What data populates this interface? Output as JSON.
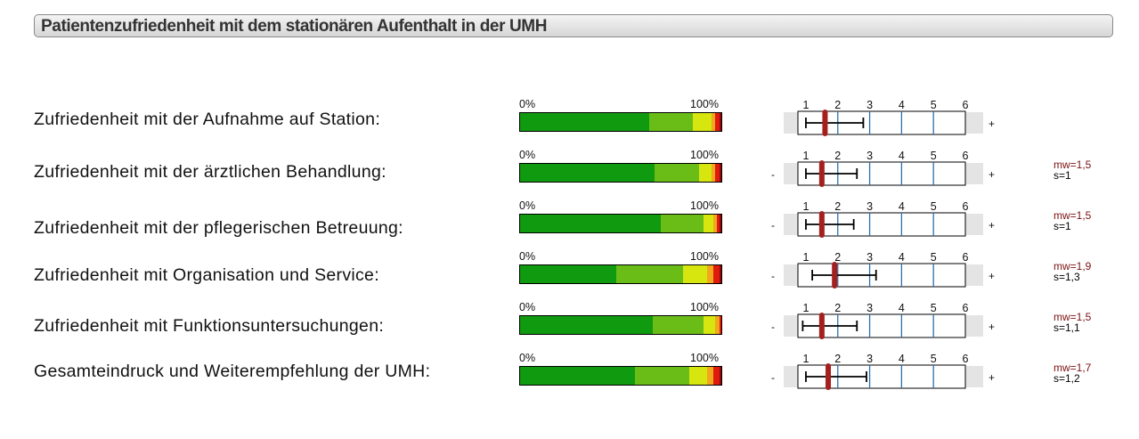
{
  "title": "Patientenzufriedenheit mit dem stationären Aufenthalt in der UMH",
  "labels": {
    "pct_min": "0%",
    "pct_max": "100%",
    "minus": "-",
    "plus": "+"
  },
  "colors": {
    "dist": [
      "#0f9a0f",
      "#6abd17",
      "#d6e60e",
      "#f2a71c",
      "#e11a0e",
      "#8c0a0a"
    ],
    "mean_marker": "#a4201e",
    "grid": "#2f6fae"
  },
  "chart_data": {
    "type": "bar",
    "distribution_scale": [
      1,
      2,
      3,
      4,
      5,
      6
    ],
    "scale_ticks": [
      1,
      2,
      3,
      4,
      5,
      6
    ],
    "rows": [
      {
        "label": "Zufriedenheit mit der Aufnahme auf Station:",
        "distribution": [
          64,
          22,
          9,
          2,
          2,
          1
        ],
        "mean": 1.6,
        "sd_low": 1.0,
        "sd_high": 2.8,
        "minus": false,
        "mw": "",
        "s": ""
      },
      {
        "label": "Zufriedenheit mit der ärztlichen Behandlung:",
        "distribution": [
          67,
          22,
          6,
          2,
          2,
          1
        ],
        "mean": 1.5,
        "sd_low": 1.0,
        "sd_high": 2.6,
        "minus": true,
        "mw": "mw=1,5",
        "s": "s=1"
      },
      {
        "label": "Zufriedenheit mit der pflegerischen Betreuung:",
        "distribution": [
          70,
          21,
          5,
          2,
          1,
          1
        ],
        "mean": 1.5,
        "sd_low": 1.0,
        "sd_high": 2.5,
        "minus": true,
        "mw": "mw=1,5",
        "s": "s=1"
      },
      {
        "label": "Zufriedenheit mit Organisation und Service:",
        "distribution": [
          48,
          33,
          12,
          3,
          3,
          1
        ],
        "mean": 1.9,
        "sd_low": 1.2,
        "sd_high": 3.2,
        "minus": true,
        "mw": "mw=1,9",
        "s": "s=1,3"
      },
      {
        "label": "Zufriedenheit mit Funktionsuntersuchungen:",
        "distribution": [
          66,
          25,
          6,
          2,
          1,
          0
        ],
        "mean": 1.5,
        "sd_low": 0.9,
        "sd_high": 2.6,
        "minus": true,
        "mw": "mw=1,5",
        "s": "s=1,1"
      },
      {
        "label": "Gesamteindruck und Weiterempfehlung der UMH:",
        "distribution": [
          57,
          27,
          9,
          3,
          3,
          1
        ],
        "mean": 1.7,
        "sd_low": 1.0,
        "sd_high": 2.9,
        "minus": true,
        "mw": "mw=1,7",
        "s": "s=1,2"
      }
    ]
  }
}
